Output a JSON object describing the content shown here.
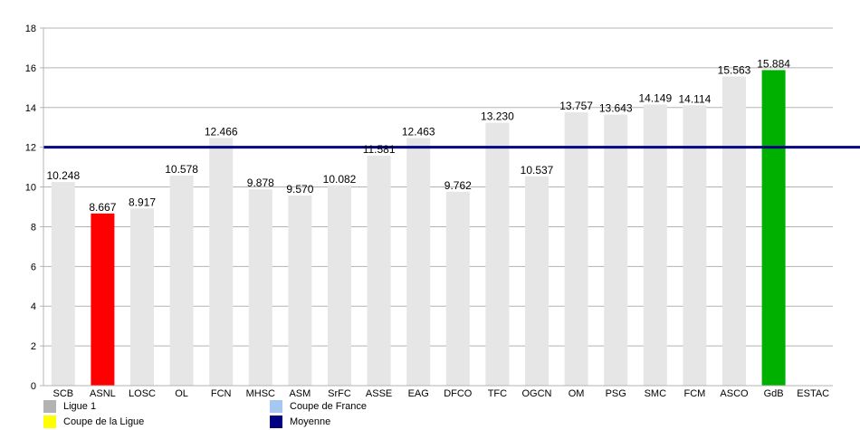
{
  "chart_data": {
    "type": "bar",
    "categories": [
      "SCB",
      "ASNL",
      "LOSC",
      "OL",
      "FCN",
      "MHSC",
      "ASM",
      "SrFC",
      "ASSE",
      "EAG",
      "DFCO",
      "TFC",
      "OGCN",
      "OM",
      "PSG",
      "SMC",
      "FCM",
      "ASCO",
      "GdB",
      "ESTAC"
    ],
    "values": [
      10.248,
      8.667,
      8.917,
      10.578,
      12.466,
      9.878,
      9.57,
      10.082,
      11.581,
      12.463,
      9.762,
      13.23,
      10.537,
      13.757,
      13.643,
      14.149,
      14.114,
      15.563,
      15.884,
      null
    ],
    "value_labels": [
      "10.248",
      "8.667",
      "8.917",
      "10.578",
      "12.466",
      "9.878",
      "9.570",
      "10.082",
      "11.581",
      "12.463",
      "9.762",
      "13.230",
      "10.537",
      "13.757",
      "13.643",
      "14.149",
      "14.114",
      "15.563",
      "15.884",
      ""
    ],
    "highlight": {
      "ASNL": "#ff0000",
      "GdB": "#00b000"
    },
    "default_bar_color": "#e6e6e6",
    "average": 12.0,
    "average_color": "#000080",
    "yticks": [
      "0",
      "2",
      "4",
      "6",
      "8",
      "10",
      "12",
      "14",
      "16",
      "18"
    ],
    "ylim": [
      0,
      18
    ],
    "grid": true,
    "title": "",
    "xlabel": "",
    "ylabel": "",
    "legend_position": "bottom",
    "legend": [
      {
        "label": "Ligue 1",
        "color": "#b3b3b3"
      },
      {
        "label": "Coupe de France",
        "color": "#a6c8f0"
      },
      {
        "label": "Coupe de la Ligue",
        "color": "#ffff00"
      },
      {
        "label": "Moyenne",
        "color": "#000080"
      }
    ]
  }
}
